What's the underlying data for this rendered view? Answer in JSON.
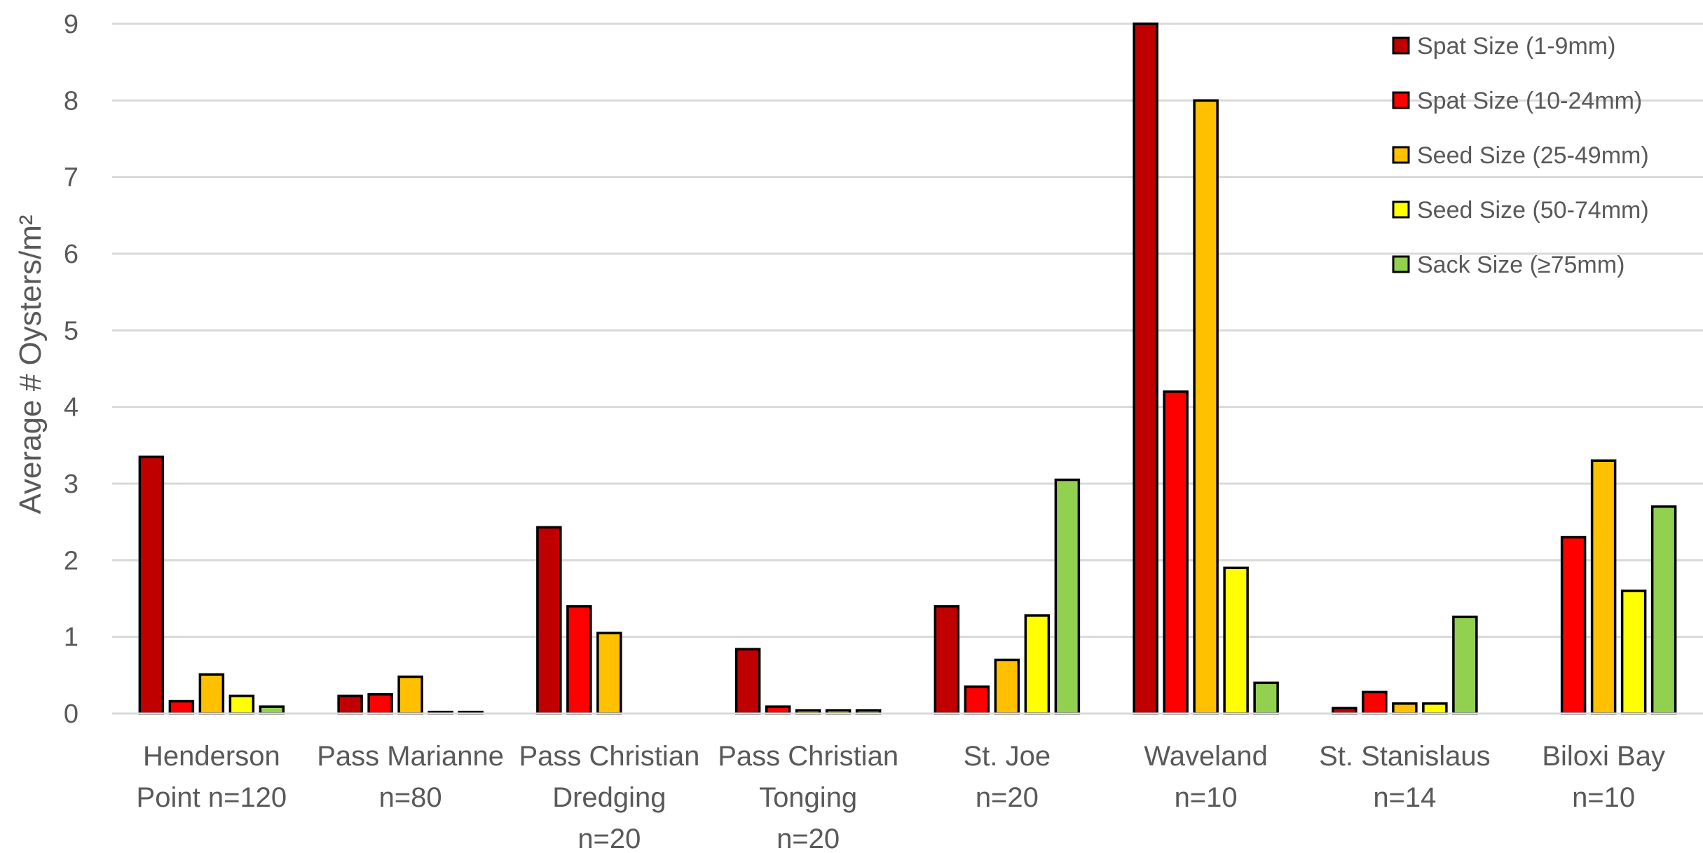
{
  "chart_data": {
    "type": "bar",
    "ylabel": "Average # Oysters/m²",
    "ylim": [
      0,
      9
    ],
    "yticks": [
      0,
      1,
      2,
      3,
      4,
      5,
      6,
      7,
      8,
      9
    ],
    "grid": true,
    "legend_position": "top-right",
    "categories": [
      [
        "Henderson",
        "Point n=120"
      ],
      [
        "Pass Marianne",
        "n=80"
      ],
      [
        "Pass Christian",
        "Dredging",
        "n=20"
      ],
      [
        "Pass Christian",
        "Tonging",
        "n=20"
      ],
      [
        "St. Joe",
        "n=20"
      ],
      [
        "Waveland",
        "n=10"
      ],
      [
        "St. Stanislaus",
        "n=14"
      ],
      [
        "Biloxi Bay",
        "n=10"
      ]
    ],
    "series": [
      {
        "name": "Spat Size (1-9mm)",
        "color": "#c00000",
        "values": [
          3.35,
          0.23,
          2.43,
          0.84,
          1.4,
          9.0,
          0.07,
          0
        ]
      },
      {
        "name": "Spat Size (10-24mm)",
        "color": "#ff0000",
        "values": [
          0.16,
          0.25,
          1.4,
          0.09,
          0.35,
          4.2,
          0.28,
          2.3
        ]
      },
      {
        "name": "Seed Size (25-49mm)",
        "color": "#ffc000",
        "values": [
          0.51,
          0.48,
          1.05,
          0.04,
          0.7,
          8.0,
          0.13,
          3.3
        ]
      },
      {
        "name": "Seed Size (50-74mm)",
        "color": "#ffff00",
        "values": [
          0.23,
          0.02,
          0,
          0.04,
          1.28,
          1.9,
          0.13,
          1.6
        ]
      },
      {
        "name": "Sack Size (≥75mm)",
        "color": "#92d050",
        "values": [
          0.09,
          0.02,
          0,
          0.04,
          3.05,
          0.4,
          1.26,
          2.7
        ]
      }
    ]
  }
}
